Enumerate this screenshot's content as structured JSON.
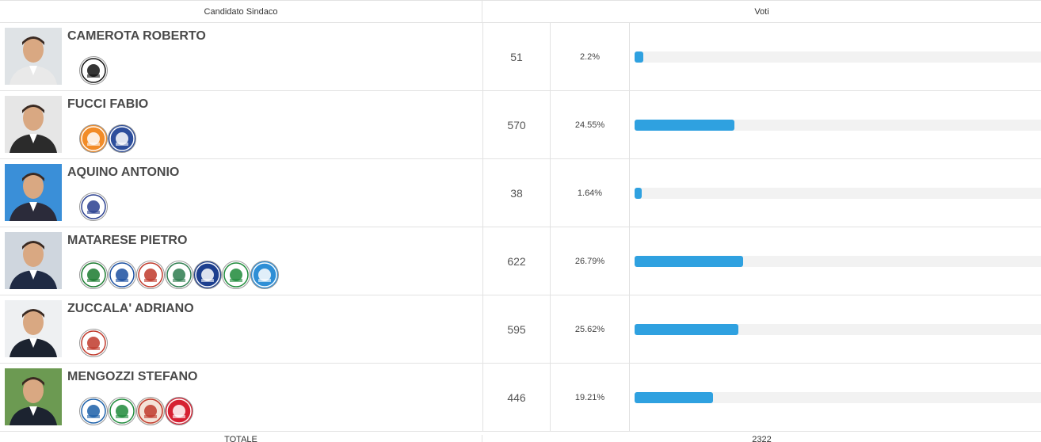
{
  "header": {
    "candidate_col": "Candidato Sindaco",
    "votes_col": "Voti"
  },
  "accent_color": "#2fa1e0",
  "candidates": [
    {
      "name": "CAMEROTA ROBERTO",
      "votes": "51",
      "pct": "2.2%",
      "share": 0.022,
      "logos": [
        {
          "icon": "casapound-logo",
          "color": "#111111",
          "bg": "#ffffff"
        }
      ]
    },
    {
      "name": "FUCCI FABIO",
      "votes": "570",
      "pct": "24.55%",
      "share": 0.2455,
      "logos": [
        {
          "icon": "lista-fucci-logo",
          "color": "#ffffff",
          "bg": "#f28c28"
        },
        {
          "icon": "essere-pomezia-logo",
          "color": "#ffffff",
          "bg": "#2d4e9c"
        }
      ]
    },
    {
      "name": "AQUINO ANTONIO",
      "votes": "38",
      "pct": "1.64%",
      "share": 0.0164,
      "logos": [
        {
          "icon": "progetto-comune-logo",
          "color": "#2a3f8f",
          "bg": "#ffffff"
        }
      ]
    },
    {
      "name": "MATARESE PIETRO",
      "votes": "622",
      "pct": "26.79%",
      "share": 0.2679,
      "logos": [
        {
          "icon": "forza-italia-logo",
          "color": "#1a7a2e",
          "bg": "#ffffff"
        },
        {
          "icon": "lega-salvini-logo",
          "color": "#1b4fa0",
          "bg": "#ffffff"
        },
        {
          "icon": "liberi-pirozzi-logo",
          "color": "#c0392b",
          "bg": "#ffffff"
        },
        {
          "icon": "civic-list-logo",
          "color": "#2e7d4f",
          "bg": "#ffffff"
        },
        {
          "icon": "fratelli-italia-meloni-logo",
          "color": "#ffffff",
          "bg": "#1d3f8f"
        },
        {
          "icon": "msi-flame-logo",
          "color": "#1e8a3a",
          "bg": "#ffffff"
        },
        {
          "icon": "matarese-sindaco-logo",
          "color": "#ffffff",
          "bg": "#2f8fd6"
        }
      ]
    },
    {
      "name": "ZUCCALA' ADRIANO",
      "votes": "595",
      "pct": "25.62%",
      "share": 0.2562,
      "logos": [
        {
          "icon": "movimento-5-stelle-logo",
          "color": "#c0392b",
          "bg": "#ffffff"
        }
      ]
    },
    {
      "name": "MENGOZZI STEFANO",
      "votes": "446",
      "pct": "19.21%",
      "share": 0.1921,
      "logos": [
        {
          "icon": "pomezia-domani-logo",
          "color": "#1b5fa8",
          "bg": "#ffffff"
        },
        {
          "icon": "partito-democratico-logo",
          "color": "#1e8a3a",
          "bg": "#ffffff"
        },
        {
          "icon": "green-civic-logo",
          "color": "#c0392b",
          "bg": "#f4e3d8"
        },
        {
          "icon": "partito-socialista-logo",
          "color": "#ffffff",
          "bg": "#d62032"
        }
      ]
    }
  ],
  "totals": {
    "label": "TOTALE",
    "value": "2322"
  }
}
